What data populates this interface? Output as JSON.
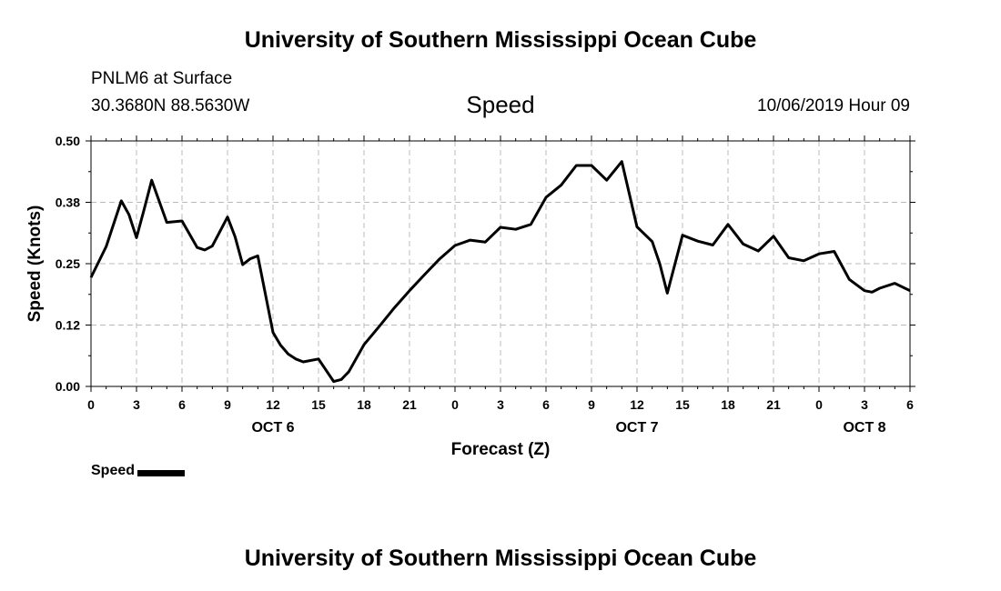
{
  "header": {
    "title": "University of Southern Mississippi Ocean Cube",
    "station": "PNLM6 at Surface",
    "coords": "30.3680N 88.5630W",
    "variable": "Speed",
    "datetime": "10/06/2019 Hour 09",
    "footer_title": "University of Southern Mississippi Ocean Cube"
  },
  "legend": {
    "label": "Speed"
  },
  "colors": {
    "line": "#000000",
    "grid": "#bbbbbb"
  },
  "chart_data": {
    "type": "line",
    "xlabel": "Forecast (Z)",
    "ylabel": "Speed (Knots)",
    "ylim": [
      0,
      0.5
    ],
    "yticks": [
      "0.00",
      "0.12",
      "0.25",
      "0.38",
      "0.50"
    ],
    "xlim": [
      0,
      54
    ],
    "xticks": [
      "0",
      "3",
      "6",
      "9",
      "12",
      "15",
      "18",
      "21",
      "0",
      "3",
      "6",
      "9",
      "12",
      "15",
      "18",
      "21",
      "0",
      "3",
      "6"
    ],
    "day_labels": [
      {
        "label": "OCT 6",
        "x": 12
      },
      {
        "label": "OCT 7",
        "x": 36
      },
      {
        "label": "OCT 8",
        "x": 51
      }
    ],
    "grid": true,
    "legend_position": "bottom-left",
    "series": [
      {
        "name": "Speed",
        "x": [
          0,
          1,
          2,
          2.5,
          3,
          3.5,
          4,
          5,
          6,
          7,
          7.5,
          8,
          9,
          9.5,
          10,
          10.5,
          11,
          12,
          12.5,
          13,
          13.5,
          14,
          15,
          16,
          16.5,
          17,
          18,
          19,
          20,
          21,
          22,
          23,
          24,
          25,
          26,
          27,
          28,
          29,
          30,
          31,
          32,
          33,
          34,
          35,
          36,
          37,
          37.5,
          38,
          39,
          40,
          41,
          42,
          43,
          44,
          45,
          46,
          47,
          48,
          49,
          50,
          51,
          51.5,
          52,
          53,
          54
        ],
        "values": [
          0.222,
          0.285,
          0.378,
          0.35,
          0.303,
          0.36,
          0.42,
          0.334,
          0.337,
          0.283,
          0.278,
          0.286,
          0.345,
          0.305,
          0.248,
          0.26,
          0.266,
          0.11,
          0.084,
          0.066,
          0.056,
          0.05,
          0.056,
          0.01,
          0.014,
          0.03,
          0.085,
          0.122,
          0.16,
          0.195,
          0.228,
          0.26,
          0.287,
          0.298,
          0.294,
          0.324,
          0.32,
          0.33,
          0.385,
          0.41,
          0.45,
          0.45,
          0.42,
          0.458,
          0.325,
          0.295,
          0.25,
          0.19,
          0.308,
          0.296,
          0.288,
          0.33,
          0.29,
          0.276,
          0.306,
          0.262,
          0.256,
          0.27,
          0.275,
          0.218,
          0.195,
          0.192,
          0.2,
          0.21,
          0.195
        ]
      }
    ]
  }
}
